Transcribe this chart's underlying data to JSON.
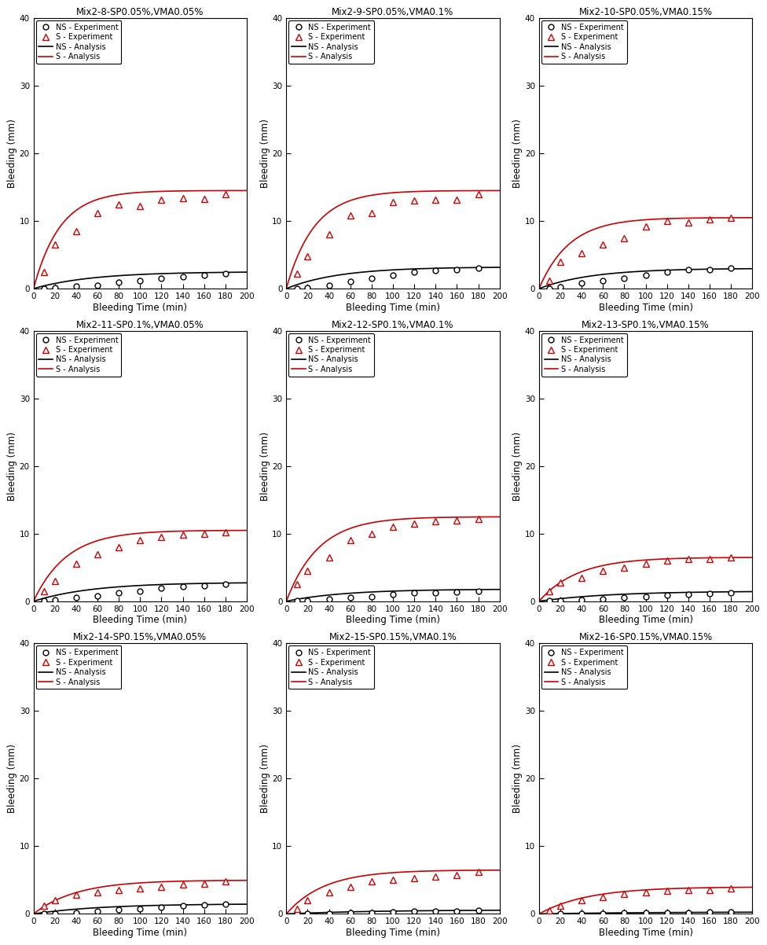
{
  "plots": [
    {
      "title": "Mix2-8-SP0.05%,VMA0.05%",
      "ns_exp_x": [
        10,
        20,
        40,
        60,
        80,
        100,
        120,
        140,
        160,
        180
      ],
      "ns_exp_y": [
        0.05,
        0.1,
        0.3,
        0.5,
        0.9,
        1.2,
        1.5,
        1.8,
        2.0,
        2.2
      ],
      "s_exp_x": [
        10,
        20,
        40,
        60,
        80,
        100,
        120,
        140,
        160,
        180
      ],
      "s_exp_y": [
        2.5,
        6.5,
        8.5,
        11.2,
        12.5,
        12.2,
        13.2,
        13.4,
        13.3,
        14.0
      ],
      "ns_curve_params": [
        2.5,
        0.018
      ],
      "s_curve_params": [
        14.5,
        0.04
      ]
    },
    {
      "title": "Mix2-9-SP0.05%,VMA0.1%",
      "ns_exp_x": [
        10,
        20,
        40,
        60,
        80,
        100,
        120,
        140,
        160,
        180
      ],
      "ns_exp_y": [
        0.05,
        0.1,
        0.5,
        1.0,
        1.5,
        2.0,
        2.5,
        2.7,
        2.8,
        3.0
      ],
      "s_exp_x": [
        10,
        20,
        40,
        60,
        80,
        100,
        120,
        140,
        160,
        180
      ],
      "s_exp_y": [
        2.2,
        4.8,
        8.0,
        10.8,
        11.2,
        12.8,
        13.0,
        13.2,
        13.2,
        14.0
      ],
      "ns_curve_params": [
        3.2,
        0.02
      ],
      "s_curve_params": [
        14.5,
        0.038
      ]
    },
    {
      "title": "Mix2-10-SP0.05%,VMA0.15%",
      "ns_exp_x": [
        10,
        20,
        40,
        60,
        80,
        100,
        120,
        140,
        160,
        180
      ],
      "ns_exp_y": [
        0.05,
        0.2,
        0.8,
        1.2,
        1.5,
        2.0,
        2.5,
        2.8,
        2.8,
        3.0
      ],
      "s_exp_x": [
        10,
        20,
        40,
        60,
        80,
        100,
        120,
        140,
        160,
        180
      ],
      "s_exp_y": [
        1.2,
        4.0,
        5.2,
        6.5,
        7.5,
        9.2,
        10.0,
        9.8,
        10.2,
        10.5
      ],
      "ns_curve_params": [
        3.0,
        0.02
      ],
      "s_curve_params": [
        10.5,
        0.035
      ]
    },
    {
      "title": "Mix2-11-SP0.1%,VMA0.05%",
      "ns_exp_x": [
        10,
        20,
        40,
        60,
        80,
        100,
        120,
        140,
        160,
        180
      ],
      "ns_exp_y": [
        0.05,
        0.2,
        0.5,
        0.8,
        1.2,
        1.5,
        2.0,
        2.2,
        2.3,
        2.5
      ],
      "s_exp_x": [
        10,
        20,
        40,
        60,
        80,
        100,
        120,
        140,
        160,
        180
      ],
      "s_exp_y": [
        1.5,
        3.0,
        5.5,
        7.0,
        8.0,
        9.0,
        9.5,
        9.8,
        10.0,
        10.2
      ],
      "ns_curve_params": [
        2.8,
        0.018
      ],
      "s_curve_params": [
        10.5,
        0.032
      ]
    },
    {
      "title": "Mix2-12-SP0.1%,VMA0.1%",
      "ns_exp_x": [
        10,
        20,
        40,
        60,
        80,
        100,
        120,
        140,
        160,
        180
      ],
      "ns_exp_y": [
        0.05,
        0.1,
        0.3,
        0.5,
        0.7,
        1.0,
        1.2,
        1.3,
        1.4,
        1.5
      ],
      "s_exp_x": [
        10,
        20,
        40,
        60,
        80,
        100,
        120,
        140,
        160,
        180
      ],
      "s_exp_y": [
        2.5,
        4.5,
        6.5,
        9.0,
        10.0,
        11.0,
        11.5,
        11.8,
        12.0,
        12.2
      ],
      "ns_curve_params": [
        1.8,
        0.018
      ],
      "s_curve_params": [
        12.5,
        0.033
      ]
    },
    {
      "title": "Mix2-13-SP0.1%,VMA0.15%",
      "ns_exp_x": [
        10,
        20,
        40,
        60,
        80,
        100,
        120,
        140,
        160,
        180
      ],
      "ns_exp_y": [
        0.05,
        0.1,
        0.2,
        0.3,
        0.5,
        0.7,
        0.9,
        1.0,
        1.1,
        1.2
      ],
      "s_exp_x": [
        10,
        20,
        40,
        60,
        80,
        100,
        120,
        140,
        160,
        180
      ],
      "s_exp_y": [
        1.5,
        2.8,
        3.5,
        4.5,
        5.0,
        5.5,
        6.0,
        6.2,
        6.3,
        6.5
      ],
      "ns_curve_params": [
        1.5,
        0.015
      ],
      "s_curve_params": [
        6.5,
        0.028
      ]
    },
    {
      "title": "Mix2-14-SP0.15%,VMA0.05%",
      "ns_exp_x": [
        10,
        20,
        40,
        60,
        80,
        100,
        120,
        140,
        160,
        180
      ],
      "ns_exp_y": [
        0.05,
        0.1,
        0.2,
        0.4,
        0.6,
        0.8,
        1.0,
        1.2,
        1.3,
        1.4
      ],
      "s_exp_x": [
        10,
        20,
        40,
        60,
        80,
        100,
        120,
        140,
        160,
        180
      ],
      "s_exp_y": [
        1.2,
        2.0,
        2.8,
        3.2,
        3.5,
        3.8,
        4.0,
        4.3,
        4.5,
        4.8
      ],
      "ns_curve_params": [
        1.5,
        0.016
      ],
      "s_curve_params": [
        5.0,
        0.025
      ]
    },
    {
      "title": "Mix2-15-SP0.15%,VMA0.1%",
      "ns_exp_x": [
        10,
        20,
        40,
        60,
        80,
        100,
        120,
        140,
        160,
        180
      ],
      "ns_exp_y": [
        0.02,
        0.05,
        0.1,
        0.15,
        0.2,
        0.3,
        0.35,
        0.4,
        0.45,
        0.5
      ],
      "s_exp_x": [
        10,
        20,
        40,
        60,
        80,
        100,
        120,
        140,
        160,
        180
      ],
      "s_exp_y": [
        0.8,
        2.0,
        3.2,
        4.0,
        4.8,
        5.0,
        5.3,
        5.5,
        5.7,
        6.2
      ],
      "ns_curve_params": [
        0.6,
        0.012
      ],
      "s_curve_params": [
        6.5,
        0.028
      ]
    },
    {
      "title": "Mix2-16-SP0.15%,VMA0.15%",
      "ns_exp_x": [
        10,
        20,
        40,
        60,
        80,
        100,
        120,
        140,
        160,
        180
      ],
      "ns_exp_y": [
        0.02,
        0.05,
        0.08,
        0.1,
        0.15,
        0.18,
        0.2,
        0.22,
        0.25,
        0.25
      ],
      "s_exp_x": [
        10,
        20,
        40,
        60,
        80,
        100,
        120,
        140,
        160,
        180
      ],
      "s_exp_y": [
        0.5,
        1.2,
        2.0,
        2.5,
        3.0,
        3.2,
        3.4,
        3.5,
        3.6,
        3.8
      ],
      "ns_curve_params": [
        0.3,
        0.01
      ],
      "s_curve_params": [
        4.0,
        0.022
      ]
    }
  ],
  "xlim": [
    0,
    200
  ],
  "ylim": [
    0,
    40
  ],
  "xticks": [
    0,
    20,
    40,
    60,
    80,
    100,
    120,
    140,
    160,
    180,
    200
  ],
  "yticks": [
    0,
    10,
    20,
    30,
    40
  ],
  "xlabel": "Bleeding Time (min)",
  "ylabel": "Bleeding (mm)",
  "ns_exp_color": "#000000",
  "s_exp_color": "#cc0000",
  "ns_line_color": "#000000",
  "s_line_color": "#cc0000",
  "legend_labels": [
    "NS - Experiment",
    "S - Experiment",
    "NS - Analysis",
    "S - Analysis"
  ],
  "grid_rows": 3,
  "grid_cols": 3,
  "figsize": [
    9.76,
    12.02
  ],
  "dpi": 100
}
